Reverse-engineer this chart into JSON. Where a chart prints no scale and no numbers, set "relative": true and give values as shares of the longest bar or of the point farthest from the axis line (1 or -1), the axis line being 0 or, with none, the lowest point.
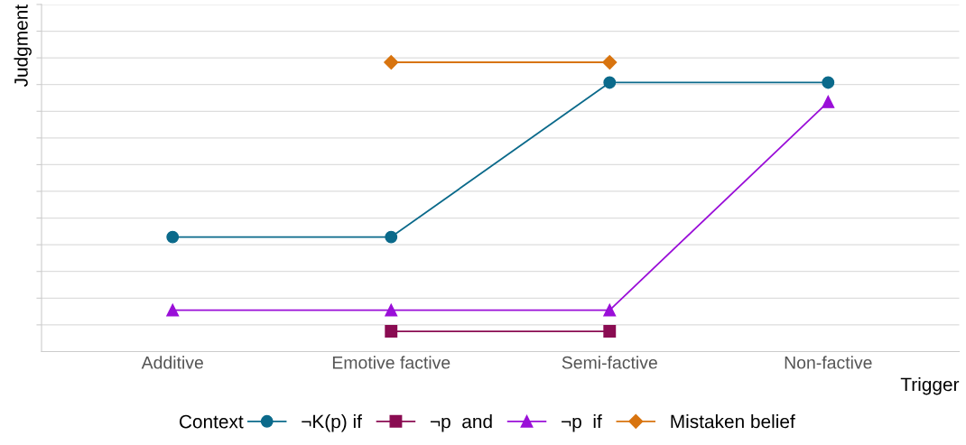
{
  "chart_data": {
    "type": "line",
    "relative": true,
    "xlabel": "Trigger",
    "ylabel": "Judgment",
    "legend_title": "Context",
    "legend": "bottom",
    "grid": "y",
    "tick_labels": "x",
    "categories": [
      "Additive",
      "Emotive factive",
      "Semi-factive",
      "Non-factive"
    ],
    "series": [
      {
        "name": "¬K(p) if",
        "color": "#0b6a8b",
        "marker": "circle",
        "values": [
          0.396,
          0.396,
          0.93,
          0.93
        ]
      },
      {
        "name": "¬p  and",
        "color": "#8a0c52",
        "marker": "square",
        "values": [
          null,
          0.07,
          0.07,
          null
        ]
      },
      {
        "name": "¬p  if",
        "color": "#9a0fd8",
        "marker": "triangle",
        "values": [
          0.143,
          0.143,
          0.143,
          0.863
        ]
      },
      {
        "name": "Mistaken belief",
        "color": "#d8740f",
        "marker": "diamond",
        "values": [
          null,
          1,
          1,
          null
        ]
      }
    ]
  }
}
